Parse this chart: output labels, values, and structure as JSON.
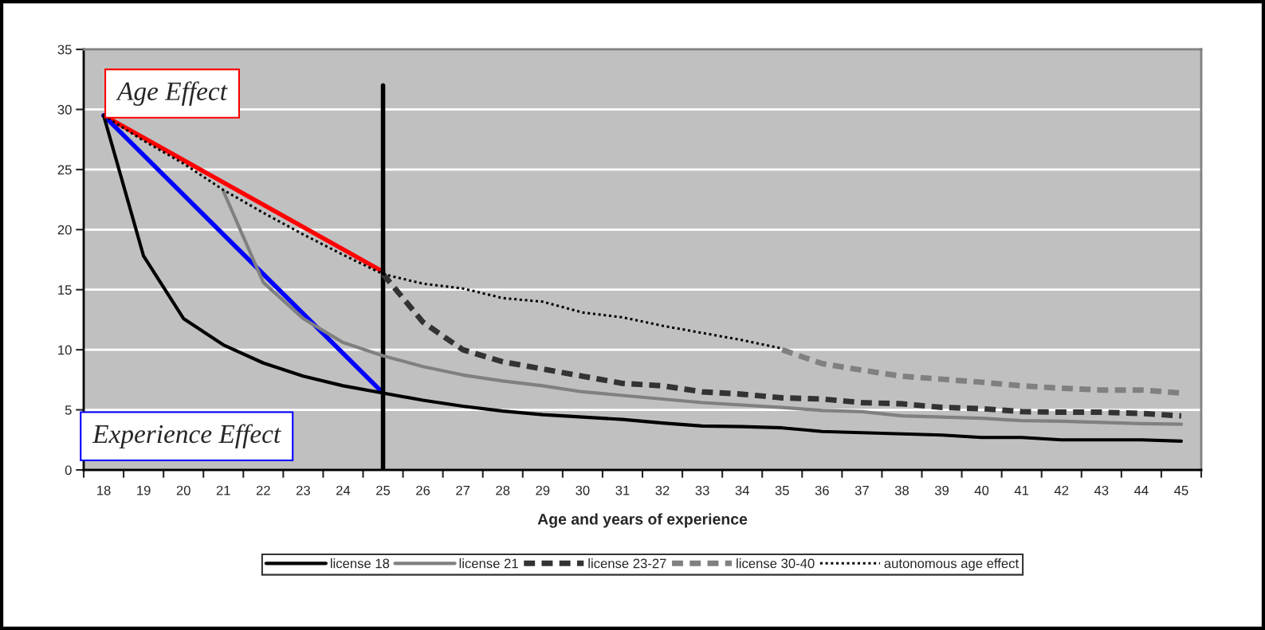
{
  "chart_data": {
    "type": "line",
    "xlabel": "Age and years of experience",
    "categories": [
      "18",
      "19",
      "20",
      "21",
      "22",
      "23",
      "24",
      "25",
      "26",
      "27",
      "28",
      "29",
      "30",
      "31",
      "32",
      "33",
      "34",
      "35",
      "36",
      "37",
      "38",
      "39",
      "40",
      "41",
      "42",
      "43",
      "44",
      "45"
    ],
    "ylim": [
      0,
      35
    ],
    "yticks": [
      0,
      5,
      10,
      15,
      20,
      25,
      30,
      35
    ],
    "grid": "y",
    "legend": "bottom",
    "marker": "none",
    "series": [
      {
        "name": "license 18",
        "color": "#000000",
        "line_style": "solid",
        "values": [
          29.5,
          17.8,
          12.6,
          10.4,
          8.9,
          7.8,
          7.0,
          6.4,
          5.8,
          5.3,
          4.9,
          4.6,
          4.4,
          4.2,
          3.9,
          3.65,
          3.6,
          3.5,
          3.2,
          3.1,
          3.0,
          2.9,
          2.7,
          2.7,
          2.5,
          2.5,
          2.5,
          2.4
        ]
      },
      {
        "name": "license 21",
        "color": "#808080",
        "line_style": "solid",
        "values": [
          null,
          null,
          null,
          23.2,
          15.6,
          12.6,
          10.6,
          9.5,
          8.6,
          7.9,
          7.4,
          7.0,
          6.5,
          6.2,
          5.9,
          5.6,
          5.4,
          5.2,
          4.95,
          4.85,
          4.5,
          4.4,
          4.3,
          4.1,
          4.05,
          3.95,
          3.85,
          3.8
        ]
      },
      {
        "name": "license 23-27",
        "color": "#333333",
        "line_style": "dashed",
        "values": [
          null,
          null,
          null,
          null,
          null,
          null,
          null,
          16.3,
          12.3,
          10.0,
          9.0,
          8.4,
          7.8,
          7.2,
          7.0,
          6.5,
          6.3,
          6.0,
          5.9,
          5.6,
          5.5,
          5.2,
          5.1,
          4.85,
          4.8,
          4.8,
          4.7,
          4.5
        ]
      },
      {
        "name": "license 30-40",
        "color": "#808080",
        "line_style": "dashed",
        "values": [
          null,
          null,
          null,
          null,
          null,
          null,
          null,
          null,
          null,
          null,
          null,
          null,
          null,
          null,
          null,
          null,
          null,
          10.0,
          8.85,
          8.3,
          7.8,
          7.55,
          7.3,
          7.0,
          6.8,
          6.65,
          6.65,
          6.4
        ]
      },
      {
        "name": "autonomous age effect",
        "color": "#000000",
        "line_style": "dotted",
        "values": [
          29.5,
          27.4,
          25.5,
          23.3,
          21.4,
          19.6,
          17.9,
          16.3,
          15.5,
          15.1,
          14.3,
          14.0,
          13.1,
          12.7,
          12.0,
          11.4,
          10.8,
          10.1,
          null,
          null,
          null,
          null,
          null,
          null,
          null,
          null,
          null,
          null
        ]
      },
      {
        "color": "#ff0000",
        "line_style": "solid",
        "x": [
          "18",
          "25"
        ],
        "values": [
          29.5,
          16.5
        ]
      },
      {
        "color": "#0000ff",
        "line_style": "solid",
        "x": [
          "18",
          "25"
        ],
        "values": [
          29.5,
          6.4
        ]
      },
      {
        "color": "#000000",
        "line_style": "solid",
        "x": [
          "25",
          "25"
        ],
        "values": [
          0,
          32
        ]
      }
    ],
    "annotations": [
      "Age Effect",
      "Experience Effect"
    ]
  }
}
